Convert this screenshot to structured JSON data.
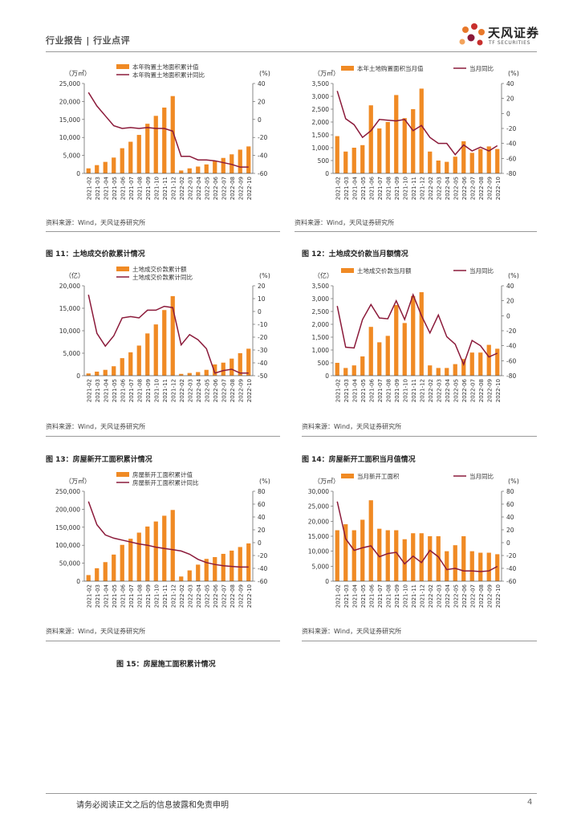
{
  "header": {
    "title": "行业报告 | 行业点评",
    "brand_cn": "天风证券",
    "brand_en": "TF SECURITIES"
  },
  "colors": {
    "bar": "#F08A24",
    "line": "#8B1A3A",
    "rule": "#999999",
    "logo_orange": "#E8782A",
    "logo_red": "#C8302E"
  },
  "sources": [
    "资料来源：Wind，天风证券研究所",
    "资料来源：Wind，天风证券研究所",
    "资料来源：Wind，天风证券研究所",
    "资料来源：Wind，天风证券研究所",
    "资料来源：Wind，天风证券研究所",
    "资料来源：Wind，天风证券研究所"
  ],
  "captions": {
    "fig11": "图 11：土地成交价款累计情况",
    "fig12": "图 12：土地成交价款当月额情况",
    "fig13": "图 13：房屋新开工面积累计情况",
    "fig14": "图 14：房屋新开工面积当月值情况",
    "fig15": "图 15：房屋施工面积累计情况"
  },
  "footer": {
    "text": "请务必阅读正文之后的信息披露和免责申明",
    "page": "4"
  },
  "chart_data": [
    {
      "type": "bar+line",
      "unit_left": "（万㎡）",
      "unit_right": "(%)",
      "categories": [
        "2021-02",
        "2021-03",
        "2021-04",
        "2021-05",
        "2021-06",
        "2021-07",
        "2021-08",
        "2021-09",
        "2021-10",
        "2021-11",
        "2021-12",
        "2022-02",
        "2022-03",
        "2022-04",
        "2022-05",
        "2022-06",
        "2022-07",
        "2022-08",
        "2022-09",
        "2022-10"
      ],
      "series": [
        {
          "name": "本年购置土地面积累计值",
          "kind": "bar",
          "values": [
            1400,
            2300,
            3200,
            4400,
            7000,
            8800,
            10700,
            13800,
            16000,
            18300,
            21500,
            800,
            1400,
            1900,
            2500,
            3500,
            4300,
            5300,
            6600,
            7500
          ]
        },
        {
          "name": "本年购置土地面积累计同比",
          "kind": "line",
          "values": [
            30,
            15,
            4,
            -7,
            -10,
            -9,
            -10,
            -9,
            -10,
            -10,
            -13,
            -41,
            -41,
            -45,
            -45,
            -46,
            -48,
            -50,
            -53,
            -53
          ]
        }
      ],
      "ylim_left": [
        0,
        25000
      ],
      "yticks_left": [
        "0",
        "5,000",
        "10,000",
        "15,000",
        "20,000",
        "25,000"
      ],
      "ylim_right": [
        -60,
        40
      ],
      "yticks_right": [
        "-60",
        "-40",
        "-20",
        "0",
        "20",
        "40"
      ]
    },
    {
      "type": "bar+line",
      "unit_left": "（万㎡）",
      "unit_right": "(%)",
      "categories": [
        "2021-02",
        "2021-03",
        "2021-04",
        "2021-05",
        "2021-06",
        "2021-07",
        "2021-08",
        "2021-09",
        "2021-10",
        "2021-11",
        "2021-12",
        "2022-02",
        "2022-03",
        "2022-04",
        "2022-05",
        "2022-06",
        "2022-07",
        "2022-08",
        "2022-09",
        "2022-10"
      ],
      "series": [
        {
          "name": "本年土地购置面积当月值",
          "kind": "bar",
          "values": [
            1450,
            850,
            1000,
            1100,
            2650,
            1750,
            2000,
            3050,
            2150,
            2500,
            3300,
            850,
            500,
            450,
            650,
            1250,
            800,
            950,
            1050,
            950
          ]
        },
        {
          "name": "当月同比",
          "kind": "line",
          "values": [
            30,
            -7,
            -15,
            -32,
            -23,
            -8,
            -9,
            -10,
            -8,
            -23,
            -16,
            -32,
            -40,
            -40,
            -55,
            -42,
            -50,
            -45,
            -50,
            -43
          ]
        }
      ],
      "ylim_left": [
        0,
        3500
      ],
      "yticks_left": [
        "0",
        "500",
        "1,000",
        "1,500",
        "2,000",
        "2,500",
        "3,000",
        "3,500"
      ],
      "ylim_right": [
        -80,
        40
      ],
      "yticks_right": [
        "-80",
        "-60",
        "-40",
        "-20",
        "0",
        "20",
        "40"
      ]
    },
    {
      "type": "bar+line",
      "unit_left": "（亿）",
      "unit_right": "(%)",
      "categories": [
        "2021-02",
        "2021-03",
        "2021-04",
        "2021-05",
        "2021-06",
        "2021-07",
        "2021-08",
        "2021-09",
        "2021-10",
        "2021-11",
        "2021-12",
        "2022-02",
        "2022-03",
        "2022-04",
        "2022-05",
        "2022-06",
        "2022-07",
        "2022-08",
        "2022-09",
        "2022-10"
      ],
      "series": [
        {
          "name": "土地成交价款累计额",
          "kind": "bar",
          "values": [
            500,
            900,
            1300,
            2100,
            3900,
            5200,
            6700,
            9400,
            11400,
            14600,
            17700,
            400,
            600,
            800,
            1300,
            2500,
            2900,
            3800,
            5000,
            6000
          ]
        },
        {
          "name": "土地成交价款累计同比",
          "kind": "line",
          "values": [
            13,
            -17,
            -27,
            -19,
            -5,
            -4,
            -5,
            1,
            1,
            4,
            3,
            -26,
            -18,
            -22,
            -29,
            -48,
            -46,
            -45,
            -48,
            -48
          ]
        }
      ],
      "ylim_left": [
        0,
        20000
      ],
      "yticks_left": [
        "0",
        "5,000",
        "10,000",
        "15,000",
        "20,000"
      ],
      "ylim_right": [
        -50,
        20
      ],
      "yticks_right": [
        "-50",
        "-40",
        "-30",
        "-20",
        "-10",
        "0",
        "10",
        "20"
      ]
    },
    {
      "type": "bar+line",
      "unit_left": "（亿）",
      "unit_right": "(%)",
      "categories": [
        "2021-02",
        "2021-03",
        "2021-04",
        "2021-05",
        "2021-06",
        "2021-07",
        "2021-08",
        "2021-09",
        "2021-10",
        "2021-11",
        "2021-12",
        "2022-02",
        "2022-03",
        "2022-04",
        "2022-05",
        "2022-06",
        "2022-07",
        "2022-08",
        "2022-09",
        "2022-10"
      ],
      "series": [
        {
          "name": "土地成交价款当月额",
          "kind": "bar",
          "values": [
            500,
            300,
            400,
            750,
            1900,
            1300,
            1550,
            2750,
            2050,
            3100,
            3250,
            400,
            300,
            300,
            450,
            650,
            900,
            900,
            1200,
            1050
          ]
        },
        {
          "name": "当月同比",
          "kind": "line",
          "values": [
            13,
            -42,
            -43,
            -5,
            15,
            -3,
            -4,
            20,
            -5,
            28,
            0,
            -23,
            1,
            -28,
            -38,
            -65,
            -33,
            -40,
            -55,
            -50
          ]
        }
      ],
      "ylim_left": [
        0,
        3500
      ],
      "yticks_left": [
        "0",
        "500",
        "1,000",
        "1,500",
        "2,000",
        "2,500",
        "3,000",
        "3,500"
      ],
      "ylim_right": [
        -80,
        40
      ],
      "yticks_right": [
        "-80",
        "-60",
        "-40",
        "-20",
        "0",
        "20",
        "40"
      ]
    },
    {
      "type": "bar+line",
      "unit_left": "（万㎡）",
      "unit_right": "(%)",
      "categories": [
        "2021-02",
        "2021-03",
        "2021-04",
        "2021-05",
        "2021-06",
        "2021-07",
        "2021-08",
        "2021-09",
        "2021-10",
        "2021-11",
        "2021-12",
        "2022-02",
        "2022-03",
        "2022-04",
        "2022-05",
        "2022-06",
        "2022-07",
        "2022-08",
        "2022-09",
        "2022-10"
      ],
      "series": [
        {
          "name": "房屋新开工面积累计值",
          "kind": "bar",
          "values": [
            17000,
            36000,
            53000,
            74000,
            101000,
            118000,
            135000,
            152000,
            166000,
            182000,
            198000,
            13000,
            30000,
            46000,
            62000,
            67000,
            76000,
            85000,
            95000,
            105000
          ]
        },
        {
          "name": "房屋新开工面积累计同比",
          "kind": "line",
          "values": [
            64,
            28,
            12,
            7,
            4,
            1,
            -2,
            -4,
            -7,
            -9,
            -11,
            -13,
            -18,
            -26,
            -31,
            -34,
            -36,
            -37,
            -38,
            -38
          ]
        }
      ],
      "ylim_left": [
        0,
        250000
      ],
      "yticks_left": [
        "0",
        "50,000",
        "100,000",
        "150,000",
        "200,000",
        "250,000"
      ],
      "ylim_right": [
        -60,
        80
      ],
      "yticks_right": [
        "-60",
        "-40",
        "-20",
        "0",
        "20",
        "40",
        "60",
        "80"
      ]
    },
    {
      "type": "bar+line",
      "unit_left": "（万㎡）",
      "unit_right": "(%)",
      "categories": [
        "2021-02",
        "2021-03",
        "2021-04",
        "2021-05",
        "2021-06",
        "2021-07",
        "2021-08",
        "2021-09",
        "2021-10",
        "2021-11",
        "2021-12",
        "2022-02",
        "2022-03",
        "2022-04",
        "2022-05",
        "2022-06",
        "2022-07",
        "2022-08",
        "2022-09",
        "2022-10"
      ],
      "series": [
        {
          "name": "当月新开工面积",
          "kind": "bar",
          "values": [
            17000,
            19000,
            17000,
            20500,
            27000,
            17500,
            17000,
            17000,
            14000,
            16000,
            16000,
            15000,
            15000,
            10000,
            12000,
            15000,
            10000,
            9500,
            9500,
            9000
          ]
        },
        {
          "name": "当月同比",
          "kind": "line",
          "values": [
            64,
            6,
            -12,
            -8,
            -5,
            -22,
            -17,
            -15,
            -33,
            -21,
            -31,
            -12,
            -22,
            -42,
            -40,
            -44,
            -44,
            -45,
            -44,
            -37
          ]
        }
      ],
      "ylim_left": [
        0,
        30000
      ],
      "yticks_left": [
        "0",
        "5,000",
        "10,000",
        "15,000",
        "20,000",
        "25,000",
        "30,000"
      ],
      "ylim_right": [
        -60,
        80
      ],
      "yticks_right": [
        "-60",
        "-40",
        "-20",
        "0",
        "20",
        "40",
        "60",
        "80"
      ]
    }
  ]
}
